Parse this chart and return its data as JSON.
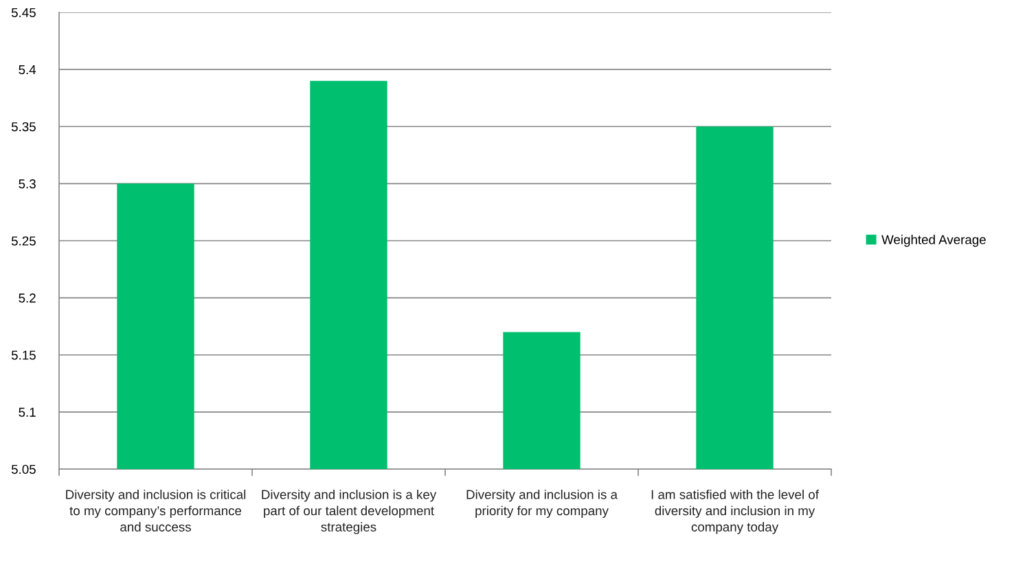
{
  "chart_data": {
    "type": "bar",
    "categories": [
      "Diversity and inclusion is critical to my company’s performance and success",
      "Diversity and inclusion is a key part of our talent development strategies",
      "Diversity and inclusion is a priority for my company",
      "I am satisfied with the level of diversity and inclusion in my company today"
    ],
    "series": [
      {
        "name": "Weighted Average",
        "color": "#00bf6f",
        "values": [
          5.3,
          5.39,
          5.17,
          5.35
        ]
      }
    ],
    "ylim": [
      5.05,
      5.45
    ],
    "yticks": [
      5.05,
      5.1,
      5.15,
      5.2,
      5.25,
      5.3,
      5.35,
      5.4,
      5.45
    ],
    "grid": "y",
    "legend": "right"
  }
}
